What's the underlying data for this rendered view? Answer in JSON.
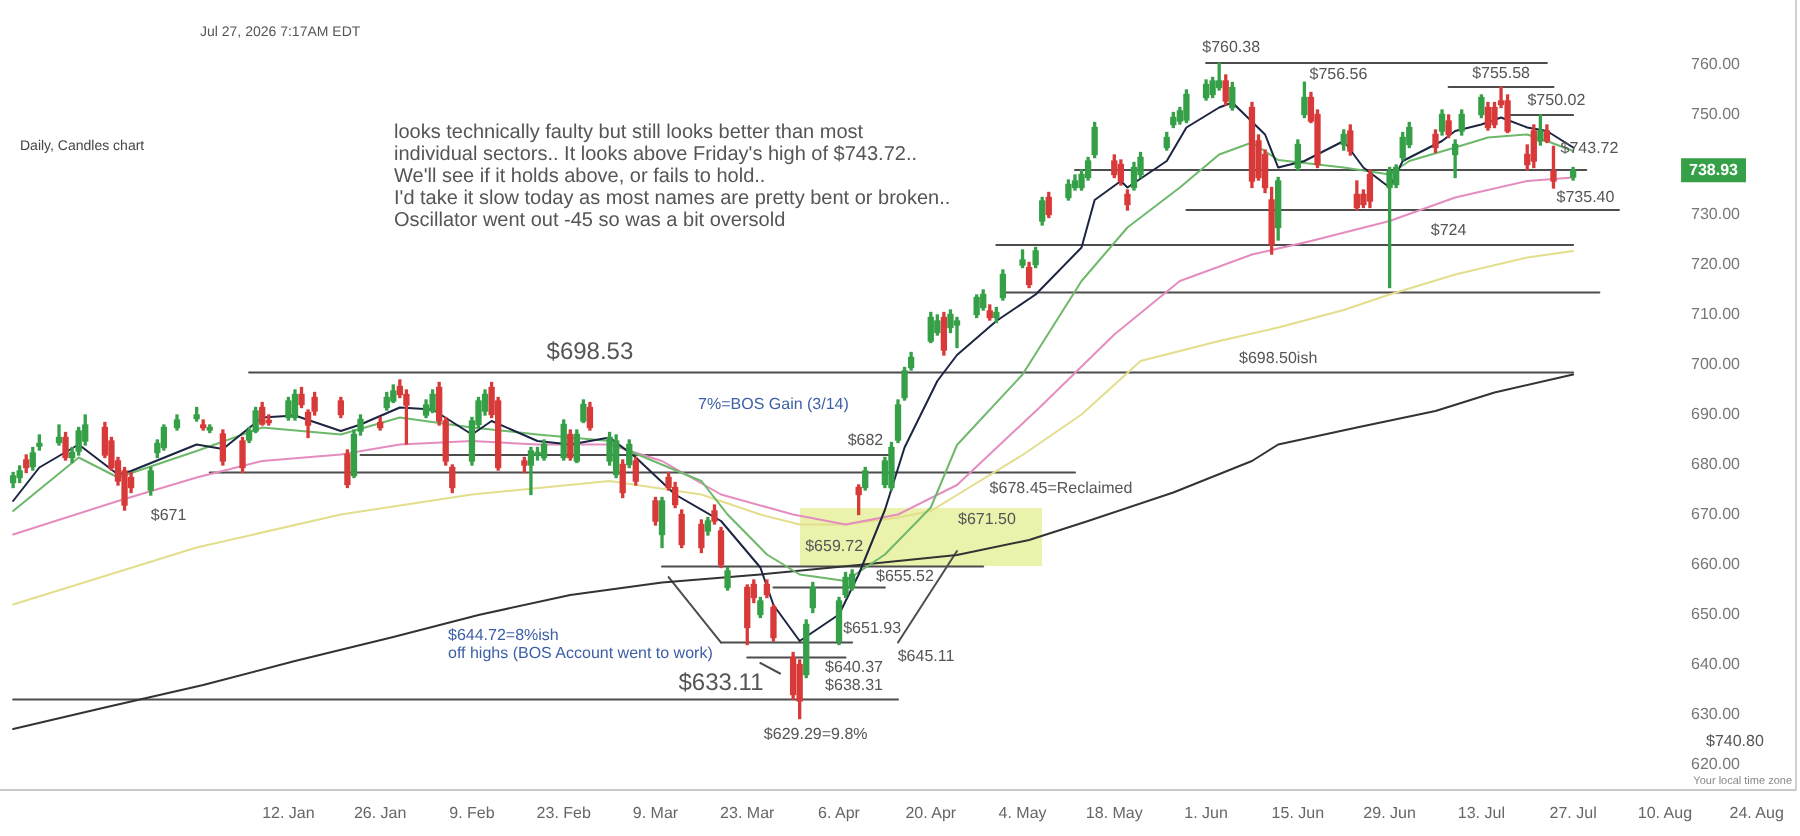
{
  "chart_data": {
    "type": "candlestick",
    "title": "Daily, Candles chart",
    "subtitle": "Jul 27, 2026 7:17AM EDT",
    "x": [
      "2025-12-01",
      "2025-12-02",
      "2025-12-03",
      "2025-12-04",
      "2025-12-05",
      "2025-12-08",
      "2025-12-09",
      "2025-12-10",
      "2025-12-11",
      "2025-12-12",
      "2025-12-15",
      "2025-12-16",
      "2025-12-17",
      "2025-12-18",
      "2025-12-19",
      "2025-12-22",
      "2025-12-23",
      "2025-12-24",
      "2025-12-26",
      "2025-12-29",
      "2025-12-30",
      "2025-12-31",
      "2026-01-02",
      "2026-01-05",
      "2026-01-06",
      "2026-01-07",
      "2026-01-08",
      "2026-01-09",
      "2026-01-12",
      "2026-01-13",
      "2026-01-14",
      "2026-01-15",
      "2026-01-16",
      "2026-01-20",
      "2026-01-21",
      "2026-01-22",
      "2026-01-23",
      "2026-01-26",
      "2026-01-27",
      "2026-01-28",
      "2026-01-29",
      "2026-01-30",
      "2026-02-02",
      "2026-02-03",
      "2026-02-04",
      "2026-02-05",
      "2026-02-06",
      "2026-02-09",
      "2026-02-10",
      "2026-02-11",
      "2026-02-12",
      "2026-02-13",
      "2026-02-17",
      "2026-02-18",
      "2026-02-19",
      "2026-02-20",
      "2026-02-23",
      "2026-02-24",
      "2026-02-25",
      "2026-02-26",
      "2026-02-27",
      "2026-03-02",
      "2026-03-03",
      "2026-03-04",
      "2026-03-05",
      "2026-03-06",
      "2026-03-09",
      "2026-03-10",
      "2026-03-11",
      "2026-03-12",
      "2026-03-13",
      "2026-03-16",
      "2026-03-17",
      "2026-03-18",
      "2026-03-19",
      "2026-03-20",
      "2026-03-23",
      "2026-03-24",
      "2026-03-25",
      "2026-03-26",
      "2026-03-27",
      "2026-03-30",
      "2026-03-31",
      "2026-04-01",
      "2026-04-02",
      "2026-04-06",
      "2026-04-07",
      "2026-04-08",
      "2026-04-09",
      "2026-04-10",
      "2026-04-13",
      "2026-04-14",
      "2026-04-15",
      "2026-04-16",
      "2026-04-17",
      "2026-04-20",
      "2026-04-21",
      "2026-04-22",
      "2026-04-23",
      "2026-04-24",
      "2026-04-27",
      "2026-04-28",
      "2026-04-29",
      "2026-04-30",
      "2026-05-01",
      "2026-05-04",
      "2026-05-05",
      "2026-05-06",
      "2026-05-07",
      "2026-05-08",
      "2026-05-11",
      "2026-05-12",
      "2026-05-13",
      "2026-05-14",
      "2026-05-15",
      "2026-05-18",
      "2026-05-19",
      "2026-05-20",
      "2026-05-21",
      "2026-05-22",
      "2026-05-26",
      "2026-05-27",
      "2026-05-28",
      "2026-05-29",
      "2026-06-01",
      "2026-06-02",
      "2026-06-03",
      "2026-06-04",
      "2026-06-05",
      "2026-06-08",
      "2026-06-09",
      "2026-06-10",
      "2026-06-11",
      "2026-06-12",
      "2026-06-15",
      "2026-06-16",
      "2026-06-17",
      "2026-06-18",
      "2026-06-22",
      "2026-06-23",
      "2026-06-24",
      "2026-06-25",
      "2026-06-26",
      "2026-06-29",
      "2026-06-30",
      "2026-07-01",
      "2026-07-02",
      "2026-07-06",
      "2026-07-07",
      "2026-07-08",
      "2026-07-09",
      "2026-07-10",
      "2026-07-13",
      "2026-07-14",
      "2026-07-15",
      "2026-07-16",
      "2026-07-17",
      "2026-07-20",
      "2026-07-21",
      "2026-07-22",
      "2026-07-23",
      "2026-07-24",
      "2026-07-27"
    ],
    "ohlc": [
      [
        676.5,
        678.5,
        675.5,
        677.8
      ],
      [
        677.5,
        679.8,
        676.5,
        678.8
      ],
      [
        681,
        682,
        678.5,
        679.5
      ],
      [
        679.7,
        683.5,
        679,
        682.4
      ],
      [
        683.8,
        686,
        683,
        684.3
      ],
      [
        684.5,
        688,
        684,
        685.5
      ],
      [
        685.5,
        686.5,
        681,
        681.5
      ],
      [
        681.5,
        683.5,
        680.5,
        682.5
      ],
      [
        682.8,
        687.5,
        682,
        686.8
      ],
      [
        684.8,
        690,
        684,
        688
      ],
      [
        687.5,
        688.5,
        681.5,
        682
      ],
      [
        684.8,
        685.5,
        679,
        679.5
      ],
      [
        680.8,
        681.5,
        676,
        676.8
      ],
      [
        678.8,
        679.5,
        671,
        672
      ],
      [
        677.5,
        678.5,
        674.5,
        675.5
      ],
      [
        675,
        679.5,
        674,
        678.8
      ],
      [
        682.5,
        685,
        681.5,
        684.3
      ],
      [
        683.5,
        688,
        683,
        687.5
      ],
      [
        687.5,
        690,
        687,
        689
      ],
      [
        689.3,
        691.5,
        688.8,
        690
      ],
      [
        688,
        689,
        687,
        687.5
      ],
      [
        687,
        688,
        686.5,
        687.5
      ],
      [
        686.2,
        687,
        680,
        680.8
      ],
      [
        684.8,
        685.5,
        678.5,
        679.5
      ],
      [
        685,
        687.5,
        684.5,
        686.8
      ],
      [
        686.8,
        691.5,
        686.5,
        690.8
      ],
      [
        691.5,
        692.5,
        688,
        688.2
      ],
      [
        688.8,
        690,
        688,
        688.5
      ],
      [
        689.5,
        693.5,
        689,
        692.8
      ],
      [
        689.5,
        695,
        689,
        694.1
      ],
      [
        694.1,
        695.5,
        691.5,
        692.1
      ],
      [
        690.5,
        691,
        685.5,
        688
      ],
      [
        693.5,
        694.5,
        690,
        690.8
      ],
      [
        692.8,
        693.5,
        689.5,
        690.1
      ],
      [
        682.1,
        683,
        675.5,
        676.1
      ],
      [
        677.9,
        687,
        677.5,
        686.1
      ],
      [
        686.8,
        690,
        686,
        689.1
      ],
      [
        688.5,
        689.5,
        687,
        687.5
      ],
      [
        691.5,
        694.5,
        691,
        693.5
      ],
      [
        692.8,
        696,
        692.5,
        694.8
      ],
      [
        695.7,
        697,
        693.5,
        694.1
      ],
      [
        694.1,
        695,
        684.2,
        692
      ],
      [
        690,
        693,
        689.5,
        692
      ],
      [
        690.8,
        695,
        690.5,
        694.1
      ],
      [
        695.5,
        696.5,
        688,
        688.8
      ],
      [
        688.8,
        689.5,
        680,
        680.8
      ],
      [
        679.5,
        680,
        674.5,
        675.5
      ],
      [
        680.8,
        689.5,
        680,
        688.8
      ],
      [
        688.1,
        693.5,
        687.5,
        692.8
      ],
      [
        690.8,
        695,
        690,
        694.1
      ],
      [
        695.5,
        696.5,
        689.5,
        690.1
      ],
      [
        692.8,
        693.5,
        679,
        679.5
      ],
      [
        680.8,
        681.5,
        678.5,
        680
      ],
      [
        680,
        683.5,
        674.1,
        682.8
      ],
      [
        682,
        683.5,
        681,
        682.5
      ],
      [
        681.5,
        685,
        681,
        684.1
      ],
      [
        681.5,
        689,
        681,
        688.1
      ],
      [
        686.1,
        687,
        681,
        681.5
      ],
      [
        680.8,
        687,
        680.5,
        686.1
      ],
      [
        688.8,
        693,
        688.5,
        692.1
      ],
      [
        691.5,
        692.5,
        687,
        687.5
      ],
      [
        680.8,
        686.5,
        680,
        685.5
      ],
      [
        678.1,
        686,
        677.5,
        684.8
      ],
      [
        680.1,
        681,
        673.5,
        674.5
      ],
      [
        680.1,
        685,
        679.5,
        684.1
      ],
      [
        680.8,
        681.5,
        676,
        676.8
      ],
      [
        672.8,
        673.5,
        668,
        668.8
      ],
      [
        666.1,
        673.5,
        663.5,
        672.8
      ],
      [
        677.5,
        678.5,
        675,
        675.5
      ],
      [
        675.5,
        676.5,
        671.5,
        672.1
      ],
      [
        670.1,
        671,
        663.5,
        664.1
      ],
      [
        668.1,
        669,
        662.5,
        663.5
      ],
      [
        666.8,
        669.5,
        666,
        668.8
      ],
      [
        670.8,
        672,
        668.2,
        668.8
      ],
      [
        666.8,
        667.5,
        659.5,
        660.1
      ],
      [
        655.5,
        659.5,
        655,
        658.8
      ],
      [
        655.5,
        656,
        644.1,
        647.5
      ],
      [
        656.1,
        657,
        652.5,
        653.5
      ],
      [
        650.1,
        653.5,
        649.5,
        652.8
      ],
      [
        656.1,
        657,
        653.5,
        654.1
      ],
      [
        651.5,
        652,
        644.8,
        645.5
      ],
      [
        641.5,
        642.5,
        633.11,
        634.1
      ],
      [
        640.1,
        641,
        629.29,
        632.8
      ],
      [
        638.1,
        649,
        637.5,
        648.1
      ],
      [
        651.5,
        656.5,
        650.5,
        655.5
      ],
      [
        644.8,
        653.5,
        644.1,
        652.8
      ],
      [
        654.1,
        658.5,
        653.5,
        657.5
      ],
      [
        655.5,
        659,
        655,
        658.1
      ],
      [
        675.5,
        676,
        670.1,
        674.1
      ],
      [
        675.5,
        679.5,
        675,
        678.8
      ],
      [
        676.1,
        681.5,
        675.5,
        680.8
      ],
      [
        675.5,
        684.5,
        675,
        683.5
      ],
      [
        685,
        693,
        684.5,
        692
      ],
      [
        693.5,
        699.5,
        693,
        698.8
      ],
      [
        699.5,
        702.5,
        699,
        701.5
      ],
      [
        704.8,
        710.5,
        704.5,
        709.5
      ],
      [
        706.5,
        710,
        706,
        708.8
      ],
      [
        709.5,
        710.5,
        702,
        703
      ],
      [
        707.5,
        711,
        706.5,
        710.1
      ],
      [
        708,
        709.5,
        703.5,
        708.8
      ],
      [
        710.1,
        714,
        709.5,
        713.5
      ],
      [
        711.5,
        715,
        711,
        714.1
      ],
      [
        710.8,
        712,
        709,
        709.5
      ],
      [
        709.5,
        711.5,
        708.5,
        710.5
      ],
      [
        713.5,
        719,
        713,
        718.1
      ],
      [
        720,
        723,
        719.5,
        721
      ],
      [
        719.5,
        720.5,
        715.5,
        716.1
      ],
      [
        720.1,
        723.5,
        719.5,
        722.8
      ],
      [
        728.8,
        733.5,
        728,
        732.8
      ],
      [
        733.5,
        734.5,
        729.5,
        730.1
      ],
      [
        733.5,
        737,
        733,
        736.1
      ],
      [
        735.5,
        738,
        735,
        736.8
      ],
      [
        735.5,
        739,
        735,
        738.1
      ],
      [
        737.5,
        741.5,
        737,
        740.8
      ],
      [
        742.1,
        748.5,
        741.5,
        747.5
      ],
      [
        740.8,
        742,
        737.5,
        738.1
      ],
      [
        740.1,
        741,
        736,
        736.8
      ],
      [
        734.1,
        735,
        731,
        732.1
      ],
      [
        735.5,
        740.5,
        735,
        739.5
      ],
      [
        738.1,
        742.5,
        737.5,
        741.5
      ],
      [
        743.5,
        746.5,
        743,
        745.5
      ],
      [
        748.1,
        750.5,
        747.5,
        749.5
      ],
      [
        748.8,
        751.5,
        748.2,
        750.8
      ],
      [
        749,
        755,
        748.5,
        754.1
      ],
      [
        753.5,
        757,
        753,
        756.1
      ],
      [
        754.1,
        757.5,
        753.5,
        756.8
      ],
      [
        755.5,
        760.38,
        755,
        756.8
      ],
      [
        756.8,
        758,
        752,
        752.8
      ],
      [
        751.5,
        756.5,
        751,
        755.5
      ],
      [
        751.5,
        752.5,
        735.5,
        736.8
      ],
      [
        744.8,
        746,
        737,
        737.5
      ],
      [
        742.1,
        743,
        734.5,
        735.5
      ],
      [
        733,
        735.5,
        722.2,
        724.1
      ],
      [
        727.5,
        737.5,
        725,
        736.8
      ],
      [
        739.5,
        745,
        739,
        744.1
      ],
      [
        750.1,
        756.56,
        749.5,
        753.5
      ],
      [
        753.5,
        754.5,
        748.5,
        748.8
      ],
      [
        750.1,
        751,
        739.5,
        740.1
      ],
      [
        744.1,
        747,
        743,
        746.1
      ],
      [
        746.8,
        748,
        742,
        742.8
      ],
      [
        734.1,
        736.8,
        731,
        731.5
      ],
      [
        734.1,
        735,
        731.5,
        732.1
      ],
      [
        738.1,
        739,
        731.5,
        732.8
      ],
      [
        735.5,
        739.5,
        715.5,
        738.8
      ],
      [
        736.1,
        740,
        735.5,
        739.5
      ],
      [
        741.5,
        746.5,
        741,
        745.5
      ],
      [
        744.1,
        748.5,
        743.5,
        747.5
      ],
      [
        746.1,
        747,
        742.5,
        743.5
      ],
      [
        746.8,
        751,
        746,
        750.1
      ],
      [
        748.8,
        750,
        745.5,
        746.1
      ],
      [
        742.1,
        745,
        737.5,
        744.1
      ],
      [
        746.8,
        751,
        746,
        750.1
      ],
      [
        750.1,
        754,
        749.5,
        753.5
      ],
      [
        751.5,
        752.5,
        747,
        747.5
      ],
      [
        751.5,
        752.5,
        747.5,
        748.1
      ],
      [
        752.8,
        755.58,
        751.5,
        752.1
      ],
      [
        752.8,
        754,
        746.5,
        746.8
      ],
      [
        742.1,
        744,
        739,
        740.1
      ],
      [
        746.8,
        748,
        739.5,
        740.8
      ],
      [
        744.8,
        750.02,
        744,
        746.8
      ],
      [
        746.8,
        748,
        744.5,
        744.8
      ],
      [
        738.8,
        743.72,
        735.4,
        736.8
      ],
      [
        737.6,
        739.5,
        737,
        738.93
      ]
    ],
    "colors": [
      "#35a047",
      "#35a047",
      "#d83a3a",
      "#35a047",
      "#35a047",
      "#35a047",
      "#d83a3a",
      "#35a047",
      "#35a047",
      "#35a047",
      "#d83a3a",
      "#d83a3a",
      "#d83a3a",
      "#d83a3a",
      "#d83a3a",
      "#35a047",
      "#35a047",
      "#35a047",
      "#35a047",
      "#35a047",
      "#d83a3a",
      "#35a047",
      "#d83a3a",
      "#d83a3a",
      "#35a047",
      "#35a047",
      "#d83a3a",
      "#d83a3a",
      "#35a047",
      "#35a047",
      "#d83a3a",
      "#d83a3a",
      "#d83a3a",
      "#d83a3a",
      "#d83a3a",
      "#35a047",
      "#35a047",
      "#d83a3a",
      "#35a047",
      "#35a047",
      "#d83a3a",
      "#d83a3a",
      "#35a047",
      "#35a047",
      "#d83a3a",
      "#d83a3a",
      "#d83a3a",
      "#35a047",
      "#35a047",
      "#35a047",
      "#d83a3a",
      "#d83a3a",
      "#d83a3a",
      "#35a047",
      "#35a047",
      "#35a047",
      "#35a047",
      "#d83a3a",
      "#35a047",
      "#35a047",
      "#d83a3a",
      "#35a047",
      "#35a047",
      "#d83a3a",
      "#35a047",
      "#d83a3a",
      "#d83a3a",
      "#35a047",
      "#d83a3a",
      "#d83a3a",
      "#d83a3a",
      "#d83a3a",
      "#35a047",
      "#d83a3a",
      "#d83a3a",
      "#35a047",
      "#d83a3a",
      "#d83a3a",
      "#35a047",
      "#d83a3a",
      "#d83a3a",
      "#d83a3a",
      "#d83a3a",
      "#35a047",
      "#35a047",
      "#35a047",
      "#35a047",
      "#35a047",
      "#d83a3a",
      "#35a047",
      "#35a047",
      "#35a047",
      "#35a047",
      "#35a047",
      "#35a047",
      "#35a047",
      "#35a047",
      "#d83a3a",
      "#35a047",
      "#35a047",
      "#35a047",
      "#35a047",
      "#d83a3a",
      "#35a047",
      "#35a047",
      "#35a047",
      "#d83a3a",
      "#35a047",
      "#35a047",
      "#d83a3a",
      "#35a047",
      "#35a047",
      "#35a047",
      "#35a047",
      "#35a047",
      "#d83a3a",
      "#d83a3a",
      "#d83a3a",
      "#35a047",
      "#35a047",
      "#35a047",
      "#35a047",
      "#35a047",
      "#35a047",
      "#35a047",
      "#35a047",
      "#35a047",
      "#d83a3a",
      "#35a047",
      "#d83a3a",
      "#d83a3a",
      "#d83a3a",
      "#d83a3a",
      "#35a047",
      "#35a047",
      "#35a047",
      "#d83a3a",
      "#d83a3a",
      "#35a047",
      "#d83a3a",
      "#d83a3a",
      "#d83a3a",
      "#d83a3a",
      "#35a047",
      "#35a047",
      "#35a047",
      "#35a047",
      "#d83a3a",
      "#35a047",
      "#d83a3a",
      "#35a047",
      "#35a047",
      "#35a047",
      "#d83a3a",
      "#d83a3a",
      "#d83a3a",
      "#d83a3a",
      "#d83a3a",
      "#d83a3a",
      "#35a047",
      "#d83a3a",
      "#d83a3a",
      "#35a047"
    ],
    "series": [
      {
        "type": "line",
        "color": "#1c2541",
        "x": [
          "2025-12-01",
          "2025-12-05",
          "2025-12-11",
          "2025-12-17",
          "2025-12-19",
          "2025-12-29",
          "2026-01-02",
          "2026-01-08",
          "2026-01-13",
          "2026-01-20",
          "2026-01-23",
          "2026-01-29",
          "2026-02-03",
          "2026-02-09",
          "2026-02-12",
          "2026-02-19",
          "2026-02-24",
          "2026-03-02",
          "2026-03-06",
          "2026-03-12",
          "2026-03-19",
          "2026-03-25",
          "2026-03-27",
          "2026-03-31",
          "2026-04-06",
          "2026-04-09",
          "2026-04-13",
          "2026-04-16",
          "2026-04-21",
          "2026-04-24",
          "2026-04-30",
          "2026-05-06",
          "2026-05-13",
          "2026-05-15",
          "2026-05-19",
          "2026-05-20",
          "2026-05-26",
          "2026-05-29",
          "2026-06-03",
          "2026-06-05",
          "2026-06-10",
          "2026-06-12",
          "2026-06-16",
          "2026-06-22",
          "2026-06-25",
          "2026-06-29",
          "2026-07-01",
          "2026-07-07",
          "2026-07-09",
          "2026-07-13",
          "2026-07-16",
          "2026-07-20",
          "2026-07-23",
          "2026-07-27"
        ],
        "values": [
          672.8,
          679.5,
          684.1,
          678.1,
          678.8,
          684.1,
          683.2,
          689.5,
          689.9,
          686.8,
          688.1,
          691.5,
          691.1,
          686.1,
          688.8,
          684.8,
          684.1,
          685.5,
          681.5,
          674.1,
          668.8,
          659.5,
          652,
          644.8,
          650.1,
          658.1,
          671,
          683.5,
          696.8,
          702,
          708.8,
          714.1,
          723.5,
          733,
          736.8,
          735.5,
          740.8,
          747.5,
          751.5,
          752.5,
          746.1,
          739.5,
          740.8,
          744.8,
          739.5,
          735.5,
          740.8,
          744.8,
          746.8,
          748.1,
          749.5,
          747.5,
          746.8,
          743.5
        ]
      },
      {
        "type": "line",
        "color": "#6db86a",
        "x": [
          "2025-12-01",
          "2025-12-11",
          "2025-12-17",
          "2025-12-29",
          "2026-01-08",
          "2026-01-20",
          "2026-01-29",
          "2026-02-09",
          "2026-02-19",
          "2026-03-02",
          "2026-03-05",
          "2026-03-16",
          "2026-03-20",
          "2026-03-26",
          "2026-03-31",
          "2026-04-07",
          "2026-04-13",
          "2026-04-20",
          "2026-04-24",
          "2026-05-04",
          "2026-05-13",
          "2026-05-20",
          "2026-05-28",
          "2026-06-03",
          "2026-06-08",
          "2026-06-12",
          "2026-06-22",
          "2026-06-29",
          "2026-07-02",
          "2026-07-09",
          "2026-07-14",
          "2026-07-20",
          "2026-07-23",
          "2026-07-27"
        ],
        "values": [
          670.8,
          681.5,
          677.5,
          682.8,
          687.5,
          686.1,
          689.5,
          687.5,
          686.1,
          684.8,
          682.8,
          676.8,
          670.1,
          662.1,
          658.1,
          656.8,
          662.1,
          671.5,
          684,
          698.1,
          716.8,
          727.5,
          735.5,
          742.1,
          744.5,
          741,
          739.5,
          738.1,
          740.8,
          743.5,
          745.5,
          746.1,
          744.8,
          742.8
        ]
      },
      {
        "type": "line",
        "color": "#e58cbf",
        "x": [
          "2025-12-01",
          "2025-12-17",
          "2025-12-29",
          "2026-01-08",
          "2026-01-20",
          "2026-01-29",
          "2026-02-09",
          "2026-02-19",
          "2026-03-02",
          "2026-03-10",
          "2026-03-19",
          "2026-03-30",
          "2026-04-07",
          "2026-04-15",
          "2026-04-24",
          "2026-05-07",
          "2026-05-18",
          "2026-05-28",
          "2026-06-08",
          "2026-06-17",
          "2026-06-29",
          "2026-07-09",
          "2026-07-20",
          "2026-07-27"
        ],
        "values": [
          666.1,
          672.8,
          677.5,
          680.8,
          682.1,
          684.1,
          684.8,
          684.1,
          684.1,
          680.8,
          674.1,
          670.1,
          668.1,
          670.1,
          676,
          692,
          706.1,
          716.8,
          722.1,
          724.8,
          728.8,
          733.5,
          736.8,
          737.5
        ]
      },
      {
        "type": "line",
        "color": "#e2de8c",
        "x": [
          "2025-12-01",
          "2025-12-29",
          "2026-01-20",
          "2026-02-09",
          "2026-03-02",
          "2026-03-16",
          "2026-03-25",
          "2026-03-31",
          "2026-04-07",
          "2026-04-15",
          "2026-04-20",
          "2026-04-24",
          "2026-05-04",
          "2026-05-13",
          "2026-05-22",
          "2026-06-03",
          "2026-06-12",
          "2026-06-22",
          "2026-06-29",
          "2026-07-09",
          "2026-07-20",
          "2026-07-27"
        ],
        "values": [
          652.1,
          663.5,
          670.1,
          674.1,
          676.8,
          674.1,
          670.1,
          668.1,
          668.1,
          669.5,
          670.8,
          674,
          682,
          690.1,
          700.8,
          704.8,
          707.5,
          711,
          714.1,
          718.1,
          721.5,
          722.8
        ]
      },
      {
        "type": "line",
        "color": "#333333",
        "x": [
          "2025-12-01",
          "2025-12-15",
          "2025-12-30",
          "2026-01-13",
          "2026-01-28",
          "2026-02-10",
          "2026-02-24",
          "2026-03-10",
          "2026-03-25",
          "2026-04-09",
          "2026-04-24",
          "2026-05-05",
          "2026-05-14",
          "2026-05-27",
          "2026-06-08",
          "2026-06-12",
          "2026-06-24",
          "2026-07-06",
          "2026-07-15",
          "2026-07-27"
        ],
        "values": [
          627.2,
          631.5,
          636,
          640.8,
          645.6,
          650,
          654,
          656.5,
          658.1,
          660,
          662,
          665,
          668.8,
          674.5,
          680.8,
          684.1,
          687.5,
          690.8,
          694.5,
          698.1
        ]
      },
      {
        "type": "line",
        "color": "#4d4d4d",
        "x": [
          "2026-06-01",
          "2026-07-23"
        ],
        "values": [
          760.4,
          760.4
        ]
      },
      {
        "type": "line",
        "color": "#4d4d4d",
        "x": [
          "2026-07-08",
          "2026-07-24"
        ],
        "values": [
          755.6,
          755.6
        ]
      },
      {
        "type": "line",
        "color": "#4d4d4d",
        "x": [
          "2026-07-17",
          "2026-07-27"
        ],
        "values": [
          750,
          750
        ]
      },
      {
        "type": "line",
        "color": "#4d4d4d",
        "x": [
          "2026-05-12",
          "2026-07-29"
        ],
        "values": [
          739,
          739
        ]
      },
      {
        "type": "line",
        "color": "#4d4d4d",
        "x": [
          "2026-05-29",
          "2026-08-03"
        ],
        "values": [
          731,
          731
        ]
      },
      {
        "type": "line",
        "color": "#4d4d4d",
        "x": [
          "2026-04-30",
          "2026-07-27"
        ],
        "values": [
          724,
          724
        ]
      },
      {
        "type": "line",
        "color": "#4d4d4d",
        "x": [
          "2026-05-01",
          "2026-07-31"
        ],
        "values": [
          714.5,
          714.5
        ]
      },
      {
        "type": "line",
        "color": "#4d4d4d",
        "x": [
          "2026-01-06",
          "2026-07-27"
        ],
        "values": [
          698.5,
          698.5
        ]
      },
      {
        "type": "line",
        "color": "#4d4d4d",
        "x": [
          "2026-01-23",
          "2026-04-14"
        ],
        "values": [
          682,
          682
        ]
      },
      {
        "type": "line",
        "color": "#4d4d4d",
        "x": [
          "2025-12-31",
          "2026-05-12"
        ],
        "values": [
          678.5,
          678.5
        ]
      },
      {
        "type": "line",
        "color": "#4d4d4d",
        "x": [
          "2026-03-10",
          "2026-04-28"
        ],
        "values": [
          659.7,
          659.7
        ]
      },
      {
        "type": "line",
        "color": "#4d4d4d",
        "x": [
          "2026-03-27",
          "2026-04-13"
        ],
        "values": [
          655.5,
          655.5
        ]
      },
      {
        "type": "line",
        "color": "#4d4d4d",
        "x": [
          "2026-03-19",
          "2026-04-08"
        ],
        "values": [
          644.5,
          644.5
        ]
      },
      {
        "type": "line",
        "color": "#4d4d4d",
        "x": [
          "2026-03-23",
          "2026-04-07"
        ],
        "values": [
          641.5,
          641.5
        ]
      },
      {
        "type": "line",
        "color": "#4d4d4d",
        "x": [
          "2025-12-01",
          "2026-04-15"
        ],
        "values": [
          633.1,
          633.1
        ]
      },
      {
        "type": "line",
        "color": "#4d4d4d",
        "x": [
          "2026-03-11",
          "2026-03-19"
        ],
        "values": [
          657.6,
          644.5
        ]
      },
      {
        "type": "line",
        "color": "#4d4d4d",
        "x": [
          "2026-04-15",
          "2026-04-24"
        ],
        "values": [
          644.5,
          662.8
        ]
      },
      {
        "type": "line",
        "color": "#4d4d4d",
        "x": [
          "2026-03-25",
          "2026-03-28"
        ],
        "values": [
          640.4,
          638.3
        ]
      }
    ],
    "xlim": [
      "2025-11-29",
      "2026-08-30"
    ],
    "xticks": [
      {
        "value": "2026-01-12",
        "label": "12. Jan"
      },
      {
        "value": "2026-01-26",
        "label": "26. Jan"
      },
      {
        "value": "2026-02-09",
        "label": "9. Feb"
      },
      {
        "value": "2026-02-23",
        "label": "23. Feb"
      },
      {
        "value": "2026-03-09",
        "label": "9. Mar"
      },
      {
        "value": "2026-03-23",
        "label": "23. Mar"
      },
      {
        "value": "2026-04-06",
        "label": "6. Apr"
      },
      {
        "value": "2026-04-20",
        "label": "20. Apr"
      },
      {
        "value": "2026-05-04",
        "label": "4. May"
      },
      {
        "value": "2026-05-18",
        "label": "18. May"
      },
      {
        "value": "2026-06-01",
        "label": "1. Jun"
      },
      {
        "value": "2026-06-15",
        "label": "15. Jun"
      },
      {
        "value": "2026-06-29",
        "label": "29. Jun"
      },
      {
        "value": "2026-07-13",
        "label": "13. Jul"
      },
      {
        "value": "2026-07-27",
        "label": "27. Jul"
      },
      {
        "value": "2026-08-10",
        "label": "10. Aug"
      },
      {
        "value": "2026-08-24",
        "label": "24. Aug"
      }
    ],
    "ylim": [
      615,
      773
    ],
    "yticks": [
      {
        "value": 620,
        "label": "620.00"
      },
      {
        "value": 630,
        "label": "630.00"
      },
      {
        "value": 640,
        "label": "640.00"
      },
      {
        "value": 650,
        "label": "650.00"
      },
      {
        "value": 660,
        "label": "660.00"
      },
      {
        "value": 670,
        "label": "670.00"
      },
      {
        "value": 680,
        "label": "680.00"
      },
      {
        "value": 690,
        "label": "690.00"
      },
      {
        "value": 700,
        "label": "700.00"
      },
      {
        "value": 710,
        "label": "710.00"
      },
      {
        "value": 720,
        "label": "720.00"
      },
      {
        "value": 730,
        "label": "730.00"
      },
      {
        "value": 750,
        "label": "750.00"
      },
      {
        "value": 760,
        "label": "760.00"
      }
    ],
    "annotations": [
      "looks technically faulty but still looks better than most\nindividual sectors.. It looks above Friday's high of $743.72..\nWe'll see if it holds above, or fails to hold..\nI'd take it slow today as most names are pretty bent or broken..\nOscillator went out -45 so was a bit oversold",
      "Your local time zone",
      {
        "text": "$760.38",
        "x": "2026-06-03",
        "y": 760.38
      },
      {
        "text": "$756.56",
        "x": "2026-06-16",
        "y": 756.56
      },
      {
        "text": "$755.58",
        "x": "2026-07-16",
        "y": 755.58
      },
      {
        "text": "$750.02",
        "x": "2026-07-22",
        "y": 750.02
      },
      {
        "text": "$743.72",
        "x": "2026-07-24",
        "y": 743.72
      },
      {
        "text": "$735.40",
        "x": "2026-07-24",
        "y": 735.4
      },
      {
        "text": "$724",
        "x": "2026-07-08",
        "y": 724
      },
      {
        "text": "$698.50ish",
        "x": "2026-06-12",
        "y": 698.5
      },
      {
        "text": "$698.53",
        "x": "2026-02-27",
        "y": 698.5
      },
      {
        "text": "7%=BOS Gain (3/14)",
        "x": "2026-03-27",
        "y": 698.5
      },
      {
        "text": "$682",
        "x": "2026-04-14",
        "y": 682
      },
      {
        "text": "$678.45=Reclaimed",
        "x": "2026-05-12",
        "y": 678.5
      },
      "$671.50",
      {
        "text": "$659.72",
        "x": "2026-04-08",
        "y": 659.7
      },
      {
        "text": "$655.52",
        "x": "2026-04-13",
        "y": 655.5
      },
      {
        "text": "$651.93",
        "x": "2026-04-08",
        "y": 644.5
      },
      {
        "text": "$645.11",
        "x": "2026-04-15",
        "y": 644.5
      },
      {
        "text": "$640.37",
        "x": "2026-03-28",
        "y": 638.3
      },
      {
        "text": "$638.31",
        "x": "2026-03-28",
        "y": 638.3
      },
      {
        "text": "$633.11",
        "x": "2026-03-19",
        "y": 633.1
      },
      {
        "text": "$629.29=9.8%",
        "x": "2026-03-31",
        "y": 629.29
      },
      "$644.72=8%ish\noff highs (BOS Account went to work)",
      {
        "text": "$671",
        "x": "2025-12-18",
        "y": 671
      },
      "$740.80",
      {
        "text": "738.93",
        "y": 738.93
      }
    ]
  }
}
